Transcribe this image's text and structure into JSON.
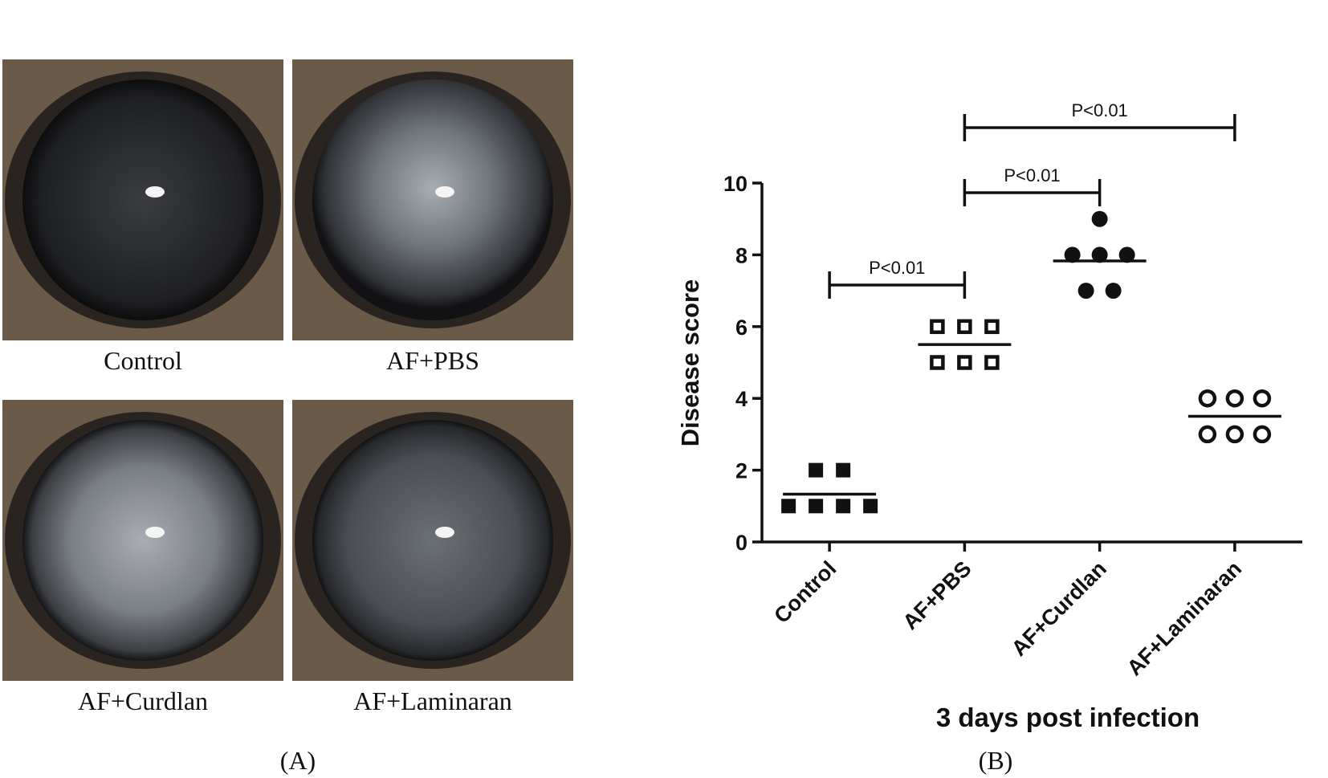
{
  "panel_a": {
    "images": [
      "Control",
      "AF+PBS",
      "AF+Curdlan",
      "AF+Laminaran"
    ],
    "label": "(A)"
  },
  "chart_data": {
    "type": "dot",
    "panel_label": "(B)",
    "ylabel": "Disease score",
    "xlabel": "3 days post infection",
    "categories": [
      "Control",
      "AF+PBS",
      "AF+Curdlan",
      "AF+Laminaran"
    ],
    "points": [
      [
        2,
        2,
        1,
        1,
        1,
        1
      ],
      [
        6,
        6,
        6,
        5,
        5,
        5
      ],
      [
        9,
        8,
        8,
        8,
        7,
        7
      ],
      [
        4,
        4,
        4,
        3,
        3,
        3
      ]
    ],
    "means": [
      1.33,
      5.5,
      7.83,
      3.5
    ],
    "markers": [
      "filled-square",
      "open-square",
      "filled-circle",
      "open-circle"
    ],
    "color": "#111111",
    "ylim": [
      0,
      10
    ],
    "yticks": [
      0,
      2,
      4,
      6,
      8,
      10
    ],
    "annotations": [
      {
        "text": "P<0.01",
        "from": "Control",
        "to": "AF+PBS"
      },
      {
        "text": "P<0.01",
        "from": "AF+PBS",
        "to": "AF+Curdlan"
      },
      {
        "text": "P<0.01",
        "from": "AF+PBS",
        "to": "AF+Laminaran"
      }
    ]
  }
}
